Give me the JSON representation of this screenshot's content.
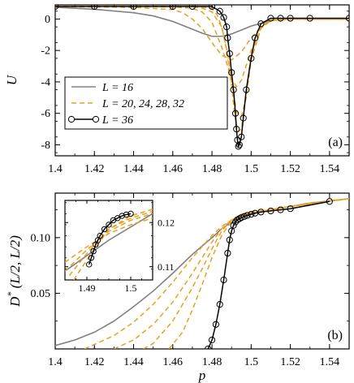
{
  "chart_data": [
    {
      "type": "line",
      "panel_label": "(a)",
      "xlabel": "",
      "ylabel": "U",
      "xlim": [
        1.4,
        1.55
      ],
      "ylim": [
        -8.7,
        0.9
      ],
      "xticks": [
        "1.4",
        "1.42",
        "1.44",
        "1.46",
        "1.48",
        "1.5",
        "1.52",
        "1.54"
      ],
      "yticks": [
        "0",
        "-2",
        "-4",
        "-6",
        "-8"
      ],
      "legend": {
        "placement": "left",
        "entries": [
          "L = 16",
          "L = 20, 24, 28, 32",
          "L = 36"
        ]
      },
      "series": [
        {
          "name": "L = 16",
          "style": "solid-gray",
          "x": [
            1.4,
            1.42,
            1.44,
            1.45,
            1.46,
            1.47,
            1.475,
            1.48,
            1.485,
            1.49,
            1.495,
            1.5,
            1.51,
            1.52,
            1.53,
            1.54,
            1.55
          ],
          "y": [
            0.75,
            0.62,
            0.4,
            0.2,
            -0.15,
            -0.65,
            -0.9,
            -1.1,
            -1.1,
            -0.95,
            -0.7,
            -0.45,
            -0.1,
            0.05,
            0.0,
            0.0,
            0.0
          ]
        },
        {
          "name": "",
          "style": "dashed-orange",
          "x": [
            1.4,
            1.42,
            1.44,
            1.46,
            1.465,
            1.47,
            1.475,
            1.48,
            1.485,
            1.49,
            1.495,
            1.5,
            1.505,
            1.51,
            1.52,
            1.53,
            1.55
          ],
          "y": [
            0.78,
            0.77,
            0.74,
            0.6,
            0.4,
            0.0,
            -0.6,
            -1.5,
            -2.3,
            -2.6,
            -2.1,
            -1.2,
            -0.5,
            -0.1,
            0.0,
            0.0,
            0.0
          ]
        },
        {
          "name": "",
          "style": "dashed-orange",
          "x": [
            1.4,
            1.44,
            1.46,
            1.47,
            1.475,
            1.48,
            1.485,
            1.49,
            1.4925,
            1.495,
            1.5,
            1.505,
            1.51,
            1.52,
            1.55
          ],
          "y": [
            0.8,
            0.79,
            0.77,
            0.68,
            0.45,
            -0.2,
            -1.8,
            -3.8,
            -4.3,
            -3.9,
            -2.0,
            -0.6,
            -0.1,
            0.0,
            0.0
          ]
        },
        {
          "name": "",
          "style": "dashed-orange",
          "x": [
            1.4,
            1.46,
            1.47,
            1.475,
            1.48,
            1.485,
            1.488,
            1.49,
            1.4925,
            1.495,
            1.4975,
            1.5,
            1.505,
            1.51,
            1.52,
            1.55
          ],
          "y": [
            0.8,
            0.8,
            0.78,
            0.7,
            0.45,
            -0.5,
            -2.2,
            -4.0,
            -5.9,
            -6.2,
            -5.0,
            -2.6,
            -0.6,
            -0.1,
            0.0,
            0.0
          ]
        },
        {
          "name": "",
          "style": "dashed-orange",
          "x": [
            1.4,
            1.46,
            1.47,
            1.475,
            1.48,
            1.4825,
            1.485,
            1.4875,
            1.49,
            1.4915,
            1.493,
            1.495,
            1.4975,
            1.5,
            1.505,
            1.51,
            1.52,
            1.55
          ],
          "y": [
            0.8,
            0.8,
            0.8,
            0.78,
            0.65,
            0.3,
            -0.5,
            -2.0,
            -4.2,
            -6.0,
            -7.2,
            -7.0,
            -4.8,
            -2.2,
            -0.5,
            -0.05,
            0.0,
            0.0
          ]
        },
        {
          "name": "L = 36",
          "style": "black-circles",
          "x": [
            1.4,
            1.42,
            1.44,
            1.46,
            1.47,
            1.48,
            1.484,
            1.486,
            1.4875,
            1.488,
            1.489,
            1.49,
            1.491,
            1.492,
            1.4925,
            1.493,
            1.4935,
            1.494,
            1.495,
            1.496,
            1.4975,
            1.5,
            1.502,
            1.505,
            1.51,
            1.515,
            1.52,
            1.53,
            1.55
          ],
          "y": [
            0.8,
            0.8,
            0.8,
            0.8,
            0.8,
            0.8,
            0.5,
            0.1,
            -0.5,
            -1.2,
            -2.2,
            -3.4,
            -4.5,
            -6.0,
            -7.0,
            -7.7,
            -8.1,
            -8.0,
            -7.5,
            -6.3,
            -4.5,
            -2.5,
            -1.2,
            -0.3,
            0.05,
            0.05,
            0.05,
            0.05,
            0.05
          ]
        }
      ]
    },
    {
      "type": "line",
      "panel_label": "(b)",
      "xlabel": "p",
      "ylabel": "D* (L/2, L/2)",
      "ylabel_main": "D",
      "ylabel_sup": "*",
      "ylabel_rest": " (L/2, L/2)",
      "xlim": [
        1.4,
        1.55
      ],
      "ylim": [
        0.0,
        0.14
      ],
      "xticks": [
        "1.4",
        "1.42",
        "1.44",
        "1.46",
        "1.48",
        "1.5",
        "1.52",
        "1.54"
      ],
      "yticks": [
        "0.05",
        "0.10"
      ],
      "series": [
        {
          "name": "L = 16",
          "style": "solid-gray",
          "x": [
            1.4,
            1.41,
            1.42,
            1.43,
            1.44,
            1.45,
            1.46,
            1.47,
            1.48,
            1.485,
            1.49,
            1.495,
            1.5,
            1.51,
            1.52,
            1.53,
            1.54,
            1.55
          ],
          "y": [
            0.003,
            0.008,
            0.015,
            0.025,
            0.038,
            0.052,
            0.068,
            0.085,
            0.1,
            0.108,
            0.114,
            0.118,
            0.121,
            0.125,
            0.128,
            0.131,
            0.133,
            0.135
          ]
        },
        {
          "name": "",
          "style": "dashed-orange",
          "x": [
            1.415,
            1.42,
            1.43,
            1.44,
            1.45,
            1.46,
            1.47,
            1.48,
            1.485,
            1.49,
            1.495,
            1.5,
            1.51,
            1.52,
            1.53,
            1.54,
            1.55
          ],
          "y": [
            0.0,
            0.004,
            0.012,
            0.024,
            0.04,
            0.06,
            0.082,
            0.102,
            0.11,
            0.116,
            0.119,
            0.122,
            0.125,
            0.128,
            0.131,
            0.133,
            0.135
          ]
        },
        {
          "name": "",
          "style": "dashed-orange",
          "x": [
            1.43,
            1.44,
            1.45,
            1.46,
            1.47,
            1.475,
            1.48,
            1.485,
            1.49,
            1.495,
            1.5,
            1.51,
            1.52,
            1.55
          ],
          "y": [
            0.0,
            0.008,
            0.022,
            0.042,
            0.068,
            0.082,
            0.096,
            0.108,
            0.116,
            0.12,
            0.122,
            0.125,
            0.128,
            0.135
          ]
        },
        {
          "name": "",
          "style": "dashed-orange",
          "x": [
            1.445,
            1.45,
            1.46,
            1.47,
            1.475,
            1.48,
            1.485,
            1.49,
            1.495,
            1.5,
            1.51,
            1.52,
            1.55
          ],
          "y": [
            0.0,
            0.005,
            0.025,
            0.055,
            0.072,
            0.09,
            0.106,
            0.116,
            0.121,
            0.123,
            0.125,
            0.128,
            0.135
          ]
        },
        {
          "name": "",
          "style": "dashed-orange",
          "x": [
            1.458,
            1.465,
            1.47,
            1.475,
            1.48,
            1.485,
            1.49,
            1.495,
            1.5,
            1.51,
            1.52,
            1.55
          ],
          "y": [
            0.0,
            0.015,
            0.035,
            0.058,
            0.082,
            0.102,
            0.115,
            0.121,
            0.123,
            0.125,
            0.128,
            0.135
          ]
        },
        {
          "name": "L = 36",
          "style": "black-circles",
          "x": [
            1.478,
            1.48,
            1.482,
            1.484,
            1.486,
            1.488,
            1.489,
            1.49,
            1.491,
            1.492,
            1.493,
            1.494,
            1.495,
            1.4965,
            1.498,
            1.5,
            1.502,
            1.505,
            1.51,
            1.515,
            1.52,
            1.54
          ],
          "y": [
            0.0,
            0.008,
            0.022,
            0.04,
            0.062,
            0.086,
            0.098,
            0.106,
            0.111,
            0.114,
            0.116,
            0.117,
            0.118,
            0.119,
            0.12,
            0.121,
            0.122,
            0.123,
            0.124,
            0.125,
            0.126,
            0.1325
          ]
        }
      ]
    },
    {
      "type": "line",
      "panel_label": "",
      "inset": true,
      "xlim": [
        1.485,
        1.505
      ],
      "ylim": [
        0.107,
        0.125
      ],
      "xticks": [
        "1.49",
        "1.5"
      ],
      "yticks": [
        "0.12",
        "0.11"
      ],
      "series": [
        {
          "name": "L = 16",
          "style": "solid-gray",
          "x": [
            1.485,
            1.49,
            1.495,
            1.5,
            1.505
          ],
          "y": [
            0.109,
            0.1125,
            0.116,
            0.119,
            0.122
          ]
        },
        {
          "name": "",
          "style": "dashed-orange",
          "x": [
            1.485,
            1.49,
            1.495,
            1.5,
            1.505
          ],
          "y": [
            0.111,
            0.1145,
            0.1175,
            0.1195,
            0.121
          ]
        },
        {
          "name": "",
          "style": "dashed-orange",
          "x": [
            1.485,
            1.49,
            1.495,
            1.5,
            1.505
          ],
          "y": [
            0.109,
            0.1138,
            0.118,
            0.1205,
            0.122
          ]
        },
        {
          "name": "",
          "style": "dashed-orange",
          "x": [
            1.486,
            1.49,
            1.495,
            1.5,
            1.505
          ],
          "y": [
            0.108,
            0.113,
            0.1185,
            0.121,
            0.1225
          ]
        },
        {
          "name": "",
          "style": "dashed-orange",
          "x": [
            1.487,
            1.49,
            1.495,
            1.5,
            1.505
          ],
          "y": [
            0.107,
            0.1115,
            0.1185,
            0.1215,
            0.123
          ]
        },
        {
          "name": "L = 36",
          "style": "black-circles",
          "x": [
            1.4905,
            1.491,
            1.4915,
            1.492,
            1.4925,
            1.493,
            1.494,
            1.495,
            1.496,
            1.497,
            1.498,
            1.499,
            1.5
          ],
          "y": [
            0.1105,
            0.112,
            0.1135,
            0.115,
            0.116,
            0.117,
            0.1185,
            0.1195,
            0.1205,
            0.121,
            0.1215,
            0.1218,
            0.122
          ]
        }
      ]
    }
  ]
}
